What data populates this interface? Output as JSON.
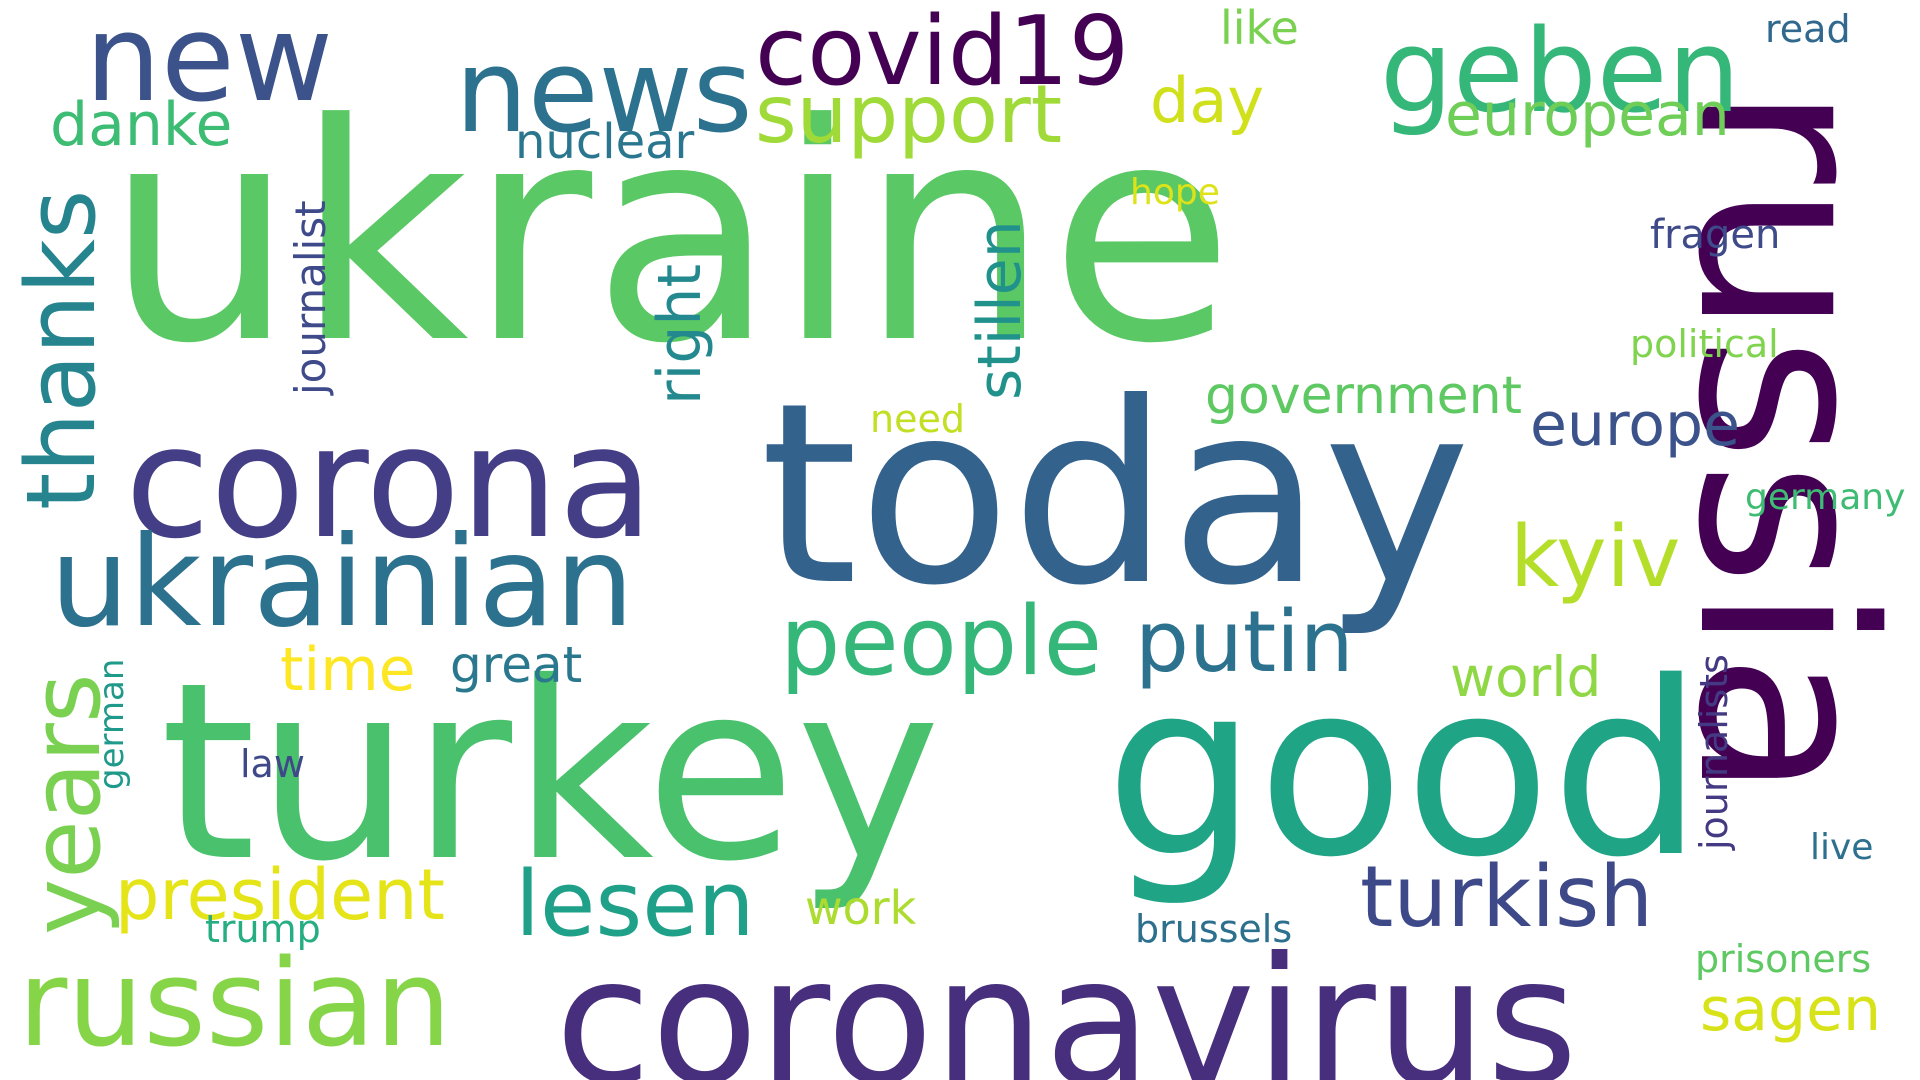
{
  "words": {
    "ukraine": "ukraine",
    "today": "today",
    "turkey": "turkey",
    "good": "good",
    "russia": "russia",
    "coronavirus": "coronavirus",
    "corona": "corona",
    "ukrainian": "ukrainian",
    "russian": "russian",
    "new": "new",
    "news": "news",
    "geben": "geben",
    "covid19": "covid19",
    "people": "people",
    "putin": "putin",
    "support": "support",
    "turkish": "turkish",
    "lesen": "lesen",
    "president": "president",
    "kyiv": "kyiv",
    "europe": "europe",
    "european": "european",
    "government": "government",
    "world": "world",
    "sagen": "sagen",
    "day": "day",
    "danke": "danke",
    "time": "time",
    "great": "great",
    "nuclear": "nuclear",
    "like": "like",
    "read": "read",
    "hope": "hope",
    "fragen": "fragen",
    "political": "political",
    "need": "need",
    "germany": "germany",
    "work": "work",
    "law": "law",
    "trump": "trump",
    "brussels": "brussels",
    "live": "live",
    "prisoners": "prisoners",
    "thanks": "thanks",
    "years": "years",
    "journalist": "journalist",
    "right": "right",
    "stillen": "stillen",
    "german": "german",
    "journalists": "journalists"
  },
  "colors": {
    "background": "#ffffff",
    "palette": "viridis"
  }
}
